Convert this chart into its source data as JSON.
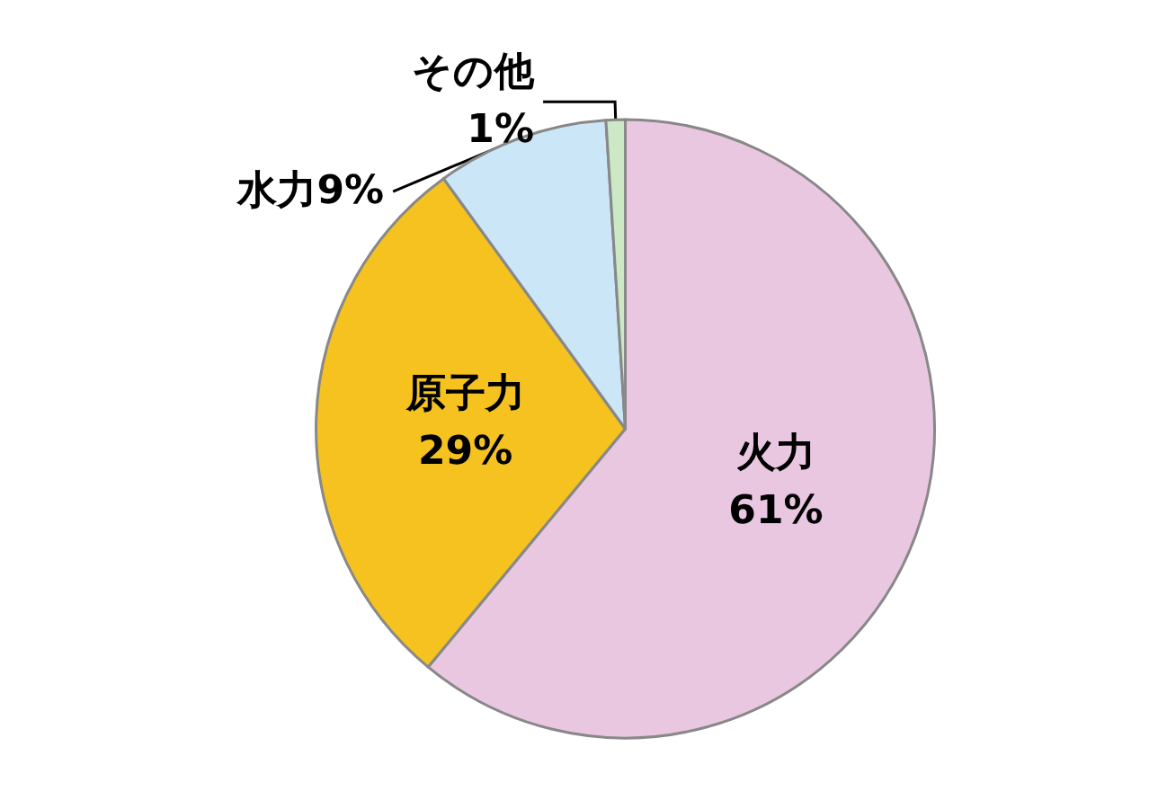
{
  "chart_data": {
    "type": "pie",
    "categories": [
      "火力",
      "原子力",
      "水力",
      "その他"
    ],
    "values": [
      61,
      29,
      9,
      1
    ],
    "value_labels": [
      "61%",
      "29%",
      "9%",
      "1%"
    ],
    "colors": [
      "#eac7e1",
      "#f5c21f",
      "#cbe6f7",
      "#cce8c4"
    ]
  }
}
